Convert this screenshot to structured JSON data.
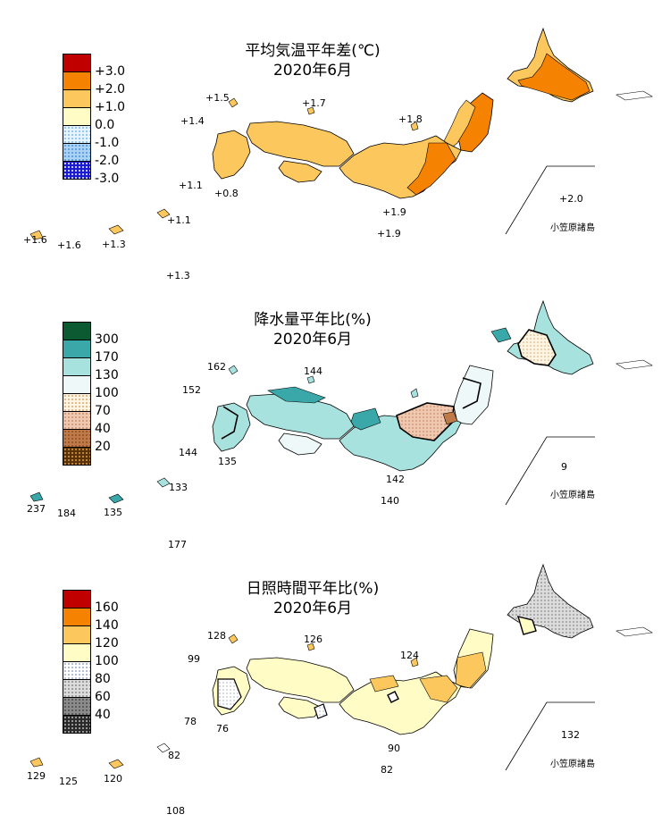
{
  "panels": [
    {
      "id": "temperature",
      "title": "平均気温平年差(℃)",
      "subtitle": "2020年6月",
      "legend": {
        "labels": [
          "+3.0",
          "+2.0",
          "+1.0",
          "0.0",
          "-1.0",
          "-2.0",
          "-3.0"
        ],
        "colors": [
          "#c00000",
          "#f58200",
          "#fcc85e",
          "#fffcc6",
          "#e6f4ff",
          "#a9d2f5",
          "#1a1ad2"
        ]
      },
      "values": {
        "rebun": "+1.5",
        "oki": "+1.7",
        "tsushima": "+1.4",
        "sado": "+1.8",
        "goto": "+1.1",
        "koshiki": "+0.8",
        "hachijo": "+1.9",
        "miyake_south": "+1.9",
        "amami": "+1.1",
        "yonaguni": "+1.6",
        "ishigaki": "+1.6",
        "miyako": "+1.3",
        "daito": "+1.3",
        "chichijima": "+2.0"
      },
      "ogasawara_label": "小笠原諸島"
    },
    {
      "id": "precipitation",
      "title": "降水量平年比(%)",
      "subtitle": "2020年6月",
      "legend": {
        "labels": [
          "300",
          "170",
          "130",
          "100",
          "70",
          "40",
          "20"
        ],
        "colors": [
          "#0b5a32",
          "#3aa8a8",
          "#a8e2de",
          "#eef8f8",
          "#fdf4e2",
          "#f0c8b0",
          "#c07a4a",
          "#5a3208"
        ]
      },
      "values": {
        "rebun": "162",
        "oki": "144",
        "tsushima": "152",
        "goto": "144",
        "koshiki": "135",
        "hachijo": "142",
        "miyake_south": "140",
        "amami": "133",
        "yonaguni": "237",
        "ishigaki": "184",
        "miyako": "135",
        "daito": "177",
        "chichijima": "9"
      },
      "ogasawara_label": "小笠原諸島"
    },
    {
      "id": "sunshine",
      "title": "日照時間平年比(%)",
      "subtitle": "2020年6月",
      "legend": {
        "labels": [
          "160",
          "140",
          "120",
          "100",
          "80",
          "60",
          "40"
        ],
        "colors": [
          "#c00000",
          "#f58200",
          "#fcc85e",
          "#fffcc6",
          "#ffffff",
          "#dcdcdc",
          "#8c8c8c",
          "#2a2a2a"
        ]
      },
      "values": {
        "rebun": "128",
        "oki": "126",
        "tsushima": "99",
        "sado": "124",
        "goto": "78",
        "koshiki": "76",
        "hachijo": "90",
        "miyake_south": "82",
        "amami": "82",
        "yonaguni": "129",
        "ishigaki": "125",
        "miyako": "120",
        "daito": "108",
        "chichijima": "132"
      },
      "ogasawara_label": "小笠原諸島"
    }
  ]
}
